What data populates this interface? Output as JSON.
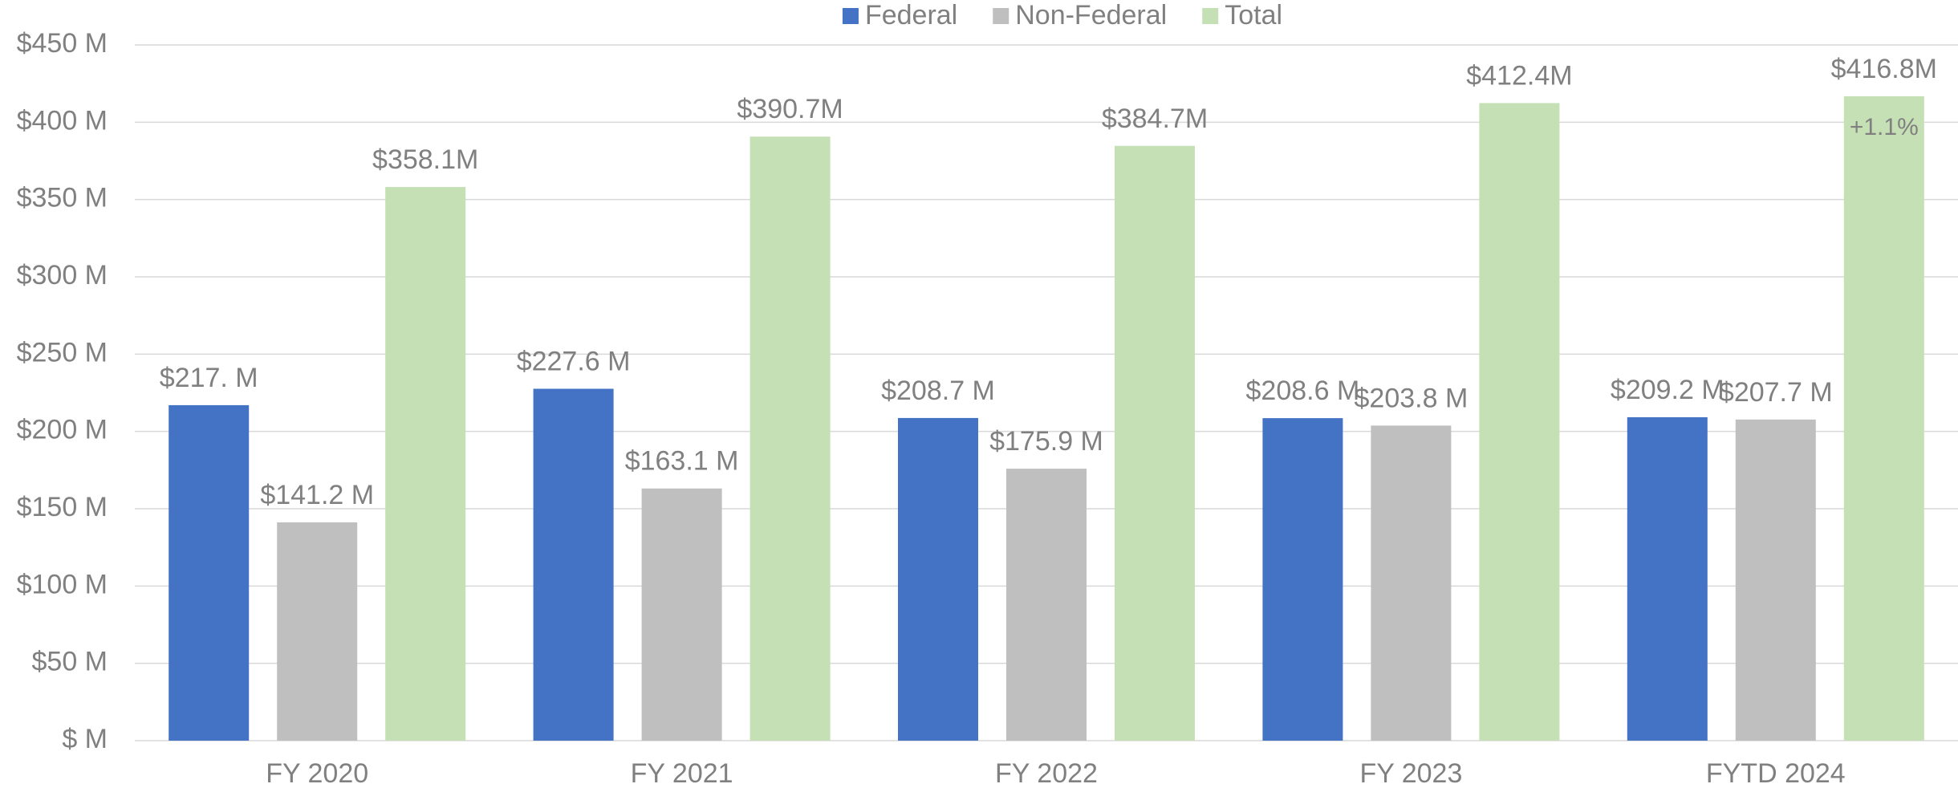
{
  "chart_data": {
    "type": "bar",
    "categories": [
      "FY 2020",
      "FY 2021",
      "FY 2022",
      "FY 2023",
      "FYTD 2024"
    ],
    "series": [
      {
        "name": "Federal",
        "color": "#4472c4",
        "values": [
          217,
          227.6,
          208.7,
          208.6,
          209.2
        ],
        "value_labels": [
          "$217. M",
          "$227.6 M",
          "$208.7 M",
          "$208.6 M",
          "$209.2 M"
        ]
      },
      {
        "name": "Non-Federal",
        "color": "#bfbfbf",
        "values": [
          141.2,
          163.1,
          175.9,
          203.8,
          207.7
        ],
        "value_labels": [
          "$141.2 M",
          "$163.1 M",
          "$175.9 M",
          "$203.8 M",
          "$207.7 M"
        ]
      },
      {
        "name": "Total",
        "color": "#c5e0b4",
        "values": [
          358.1,
          390.7,
          384.7,
          412.4,
          416.8
        ],
        "value_labels": [
          "$358.1M",
          "$390.7M",
          "$384.7M",
          "$412.4M",
          "$416.8M"
        ]
      }
    ],
    "annotation": "+1.1%",
    "ylim": [
      0,
      450
    ],
    "yticks": [
      {
        "value": 0,
        "label": "$ M"
      },
      {
        "value": 50,
        "label": "$50 M"
      },
      {
        "value": 100,
        "label": "$100 M"
      },
      {
        "value": 150,
        "label": "$150 M"
      },
      {
        "value": 200,
        "label": "$200 M"
      },
      {
        "value": 250,
        "label": "$250 M"
      },
      {
        "value": 300,
        "label": "$300 M"
      },
      {
        "value": 350,
        "label": "$350 M"
      },
      {
        "value": 400,
        "label": "$400 M"
      },
      {
        "value": 450,
        "label": "$450 M"
      }
    ],
    "grid": true,
    "legend": "top"
  }
}
